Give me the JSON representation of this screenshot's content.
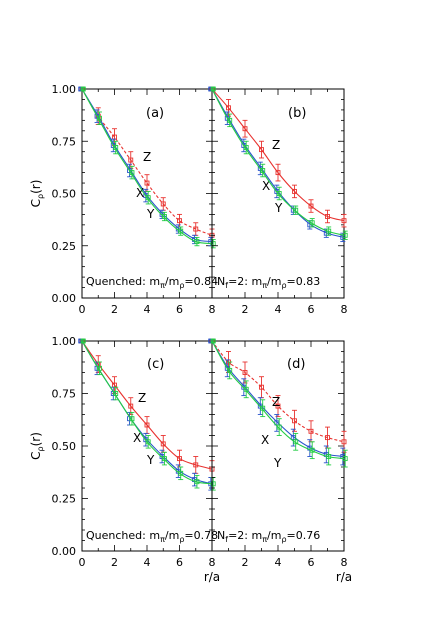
{
  "chart_data": [
    {
      "type": "line",
      "panel": "(a)",
      "annotation": "Quenched: m_π/m_ρ=0.84",
      "annotation_parts": [
        "Quenched:  m",
        "π",
        "/m",
        "ρ",
        "=0.84"
      ],
      "ylabel": "C_ρ(r)",
      "ylabel_parts": [
        "C",
        "ρ",
        "(r)"
      ],
      "xlim": [
        0,
        8
      ],
      "ylim": [
        0,
        1
      ],
      "xticks": [
        "0",
        "2",
        "4",
        "6",
        "8"
      ],
      "yticks": [
        "0.00",
        "0.25",
        "0.50",
        "0.75",
        "1.00"
      ],
      "series": [
        {
          "name": "Z",
          "color": "#e8322f",
          "x": [
            0,
            1,
            2,
            3,
            4,
            5,
            6,
            7,
            8
          ],
          "y": [
            1.0,
            0.87,
            0.77,
            0.66,
            0.55,
            0.45,
            0.37,
            0.33,
            0.3
          ],
          "err": [
            0.005,
            0.04,
            0.04,
            0.04,
            0.04,
            0.03,
            0.03,
            0.03,
            0.03
          ]
        },
        {
          "name": "X",
          "color": "#2a55cc",
          "x": [
            0,
            1,
            2,
            3,
            4,
            5,
            6,
            7,
            8
          ],
          "y": [
            1.0,
            0.87,
            0.73,
            0.61,
            0.49,
            0.4,
            0.33,
            0.28,
            0.27
          ],
          "err": [
            0.005,
            0.03,
            0.03,
            0.03,
            0.03,
            0.02,
            0.02,
            0.02,
            0.02
          ]
        },
        {
          "name": "Y",
          "color": "#22cc44",
          "x": [
            0,
            1,
            2,
            3,
            4,
            5,
            6,
            7,
            8
          ],
          "y": [
            1.0,
            0.86,
            0.72,
            0.6,
            0.48,
            0.39,
            0.32,
            0.27,
            0.26
          ],
          "err": [
            0.005,
            0.03,
            0.03,
            0.03,
            0.03,
            0.02,
            0.02,
            0.02,
            0.02
          ]
        }
      ]
    },
    {
      "type": "line",
      "panel": "(b)",
      "annotation": "N_f=2: m_π/m_ρ=0.83",
      "annotation_parts": [
        "N",
        "f",
        "=2:  m",
        "π",
        "/m",
        "ρ",
        "=0.83"
      ],
      "xlim": [
        0,
        8
      ],
      "ylim": [
        0,
        1
      ],
      "xticks": [
        "2",
        "4",
        "6",
        "8"
      ],
      "series": [
        {
          "name": "Z",
          "color": "#e8322f",
          "x": [
            0,
            1,
            2,
            3,
            4,
            5,
            6,
            7,
            8
          ],
          "y": [
            1.0,
            0.91,
            0.81,
            0.71,
            0.6,
            0.51,
            0.44,
            0.39,
            0.37
          ],
          "err": [
            0.005,
            0.04,
            0.04,
            0.04,
            0.04,
            0.03,
            0.03,
            0.03,
            0.03
          ]
        },
        {
          "name": "X",
          "color": "#2a55cc",
          "x": [
            0,
            1,
            2,
            3,
            4,
            5,
            6,
            7,
            8
          ],
          "y": [
            1.0,
            0.86,
            0.73,
            0.62,
            0.51,
            0.42,
            0.35,
            0.31,
            0.29
          ],
          "err": [
            0.005,
            0.03,
            0.03,
            0.03,
            0.03,
            0.02,
            0.02,
            0.02,
            0.02
          ]
        },
        {
          "name": "Y",
          "color": "#22cc44",
          "x": [
            0,
            1,
            2,
            3,
            4,
            5,
            6,
            7,
            8
          ],
          "y": [
            1.0,
            0.85,
            0.72,
            0.61,
            0.5,
            0.42,
            0.36,
            0.32,
            0.3
          ],
          "err": [
            0.005,
            0.03,
            0.03,
            0.03,
            0.03,
            0.02,
            0.02,
            0.02,
            0.02
          ]
        }
      ]
    },
    {
      "type": "line",
      "panel": "(c)",
      "annotation": "Quenched: m_π/m_ρ=0.78",
      "annotation_parts": [
        "Quenched:  m",
        "π",
        "/m",
        "ρ",
        "=0.78"
      ],
      "ylabel": "C_ρ(r)",
      "ylabel_parts": [
        "C",
        "ρ",
        "(r)"
      ],
      "xlabel": "r/a",
      "xlim": [
        0,
        8
      ],
      "ylim": [
        0,
        1
      ],
      "xticks": [
        "0",
        "2",
        "4",
        "6",
        "8"
      ],
      "yticks": [
        "0.00",
        "0.25",
        "0.50",
        "0.75",
        "1.00"
      ],
      "series": [
        {
          "name": "Z",
          "color": "#e8322f",
          "x": [
            0,
            1,
            2,
            3,
            4,
            5,
            6,
            7,
            8
          ],
          "y": [
            1.0,
            0.89,
            0.79,
            0.69,
            0.6,
            0.51,
            0.44,
            0.41,
            0.39
          ],
          "err": [
            0.005,
            0.04,
            0.04,
            0.04,
            0.04,
            0.04,
            0.04,
            0.04,
            0.04
          ]
        },
        {
          "name": "X",
          "color": "#2a55cc",
          "x": [
            0,
            1,
            2,
            3,
            4,
            5,
            6,
            7,
            8
          ],
          "y": [
            1.0,
            0.87,
            0.75,
            0.63,
            0.53,
            0.45,
            0.38,
            0.34,
            0.32
          ],
          "err": [
            0.005,
            0.03,
            0.03,
            0.03,
            0.03,
            0.03,
            0.03,
            0.03,
            0.03
          ]
        },
        {
          "name": "Y",
          "color": "#22cc44",
          "x": [
            0,
            1,
            2,
            3,
            4,
            5,
            6,
            7,
            8
          ],
          "y": [
            1.0,
            0.87,
            0.75,
            0.63,
            0.52,
            0.44,
            0.37,
            0.33,
            0.32
          ],
          "err": [
            0.005,
            0.03,
            0.03,
            0.03,
            0.03,
            0.03,
            0.03,
            0.03,
            0.03
          ]
        }
      ]
    },
    {
      "type": "line",
      "panel": "(d)",
      "annotation": "N_f=2: m_π/m_ρ=0.76",
      "annotation_parts": [
        "N",
        "f",
        "=2:  m",
        "π",
        "/m",
        "ρ",
        "=0.76"
      ],
      "xlabel": "r/a",
      "xlim": [
        0,
        8
      ],
      "ylim": [
        0,
        1
      ],
      "xticks": [
        "2",
        "4",
        "6",
        "8"
      ],
      "series": [
        {
          "name": "Z",
          "color": "#e8322f",
          "x": [
            0,
            1,
            2,
            3,
            4,
            5,
            6,
            7,
            8
          ],
          "y": [
            1.0,
            0.9,
            0.85,
            0.78,
            0.69,
            0.62,
            0.57,
            0.54,
            0.52
          ],
          "err": [
            0.005,
            0.05,
            0.05,
            0.05,
            0.05,
            0.05,
            0.05,
            0.05,
            0.05
          ]
        },
        {
          "name": "X",
          "color": "#2a55cc",
          "x": [
            0,
            1,
            2,
            3,
            4,
            5,
            6,
            7,
            8
          ],
          "y": [
            1.0,
            0.87,
            0.78,
            0.69,
            0.61,
            0.54,
            0.49,
            0.46,
            0.45
          ],
          "err": [
            0.005,
            0.04,
            0.04,
            0.04,
            0.04,
            0.04,
            0.04,
            0.04,
            0.04
          ]
        },
        {
          "name": "Y",
          "color": "#22cc44",
          "x": [
            0,
            1,
            2,
            3,
            4,
            5,
            6,
            7,
            8
          ],
          "y": [
            1.0,
            0.86,
            0.77,
            0.68,
            0.59,
            0.52,
            0.48,
            0.45,
            0.44
          ],
          "err": [
            0.005,
            0.04,
            0.04,
            0.04,
            0.04,
            0.04,
            0.04,
            0.04,
            0.04
          ]
        }
      ]
    }
  ]
}
